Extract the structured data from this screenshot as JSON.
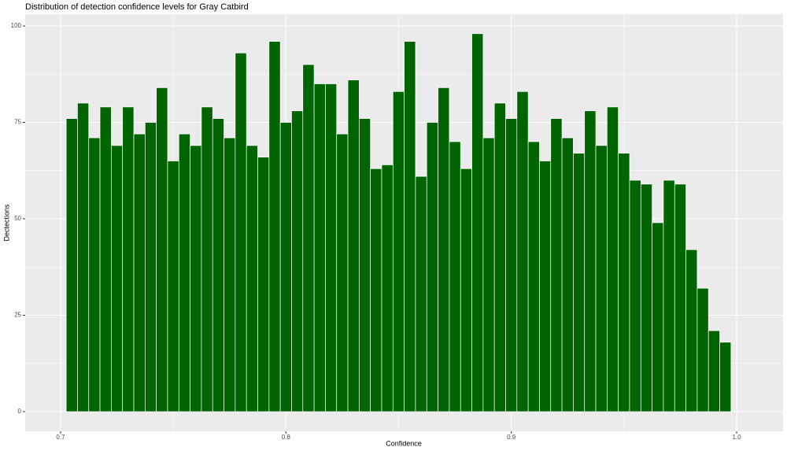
{
  "chart_data": {
    "type": "histogram",
    "title": "Distribution of detection confidence levels for Gray Catbird",
    "x_label": "Confidence",
    "y_label": "Dectections",
    "bins": [
      0.7025,
      0.7075,
      0.7125,
      0.7175,
      0.7225,
      0.7275,
      0.7325,
      0.7375,
      0.7425,
      0.7475,
      0.7525,
      0.7575,
      0.7625,
      0.7675,
      0.7725,
      0.7775,
      0.7825,
      0.7875,
      0.7925,
      0.7975,
      0.8025,
      0.8075,
      0.8125,
      0.8175,
      0.8225,
      0.8275,
      0.8325,
      0.8375,
      0.8425,
      0.8475,
      0.8525,
      0.8575,
      0.8625,
      0.8675,
      0.8725,
      0.8775,
      0.8825,
      0.8875,
      0.8925,
      0.8975,
      0.9025,
      0.9075,
      0.9125,
      0.9175,
      0.9225,
      0.9275,
      0.9325,
      0.9375,
      0.9425,
      0.9475,
      0.9525,
      0.9575,
      0.9625,
      0.9675,
      0.9725,
      0.9775,
      0.9825,
      0.9875,
      0.9925,
      0.9975
    ],
    "values": [
      76,
      80,
      71,
      79,
      69,
      79,
      72,
      75,
      84,
      65,
      72,
      69,
      79,
      76,
      71,
      93,
      69,
      66,
      96,
      75,
      78,
      90,
      85,
      85,
      72,
      86,
      76,
      63,
      64,
      83,
      96,
      61,
      75,
      84,
      70,
      63,
      98,
      71,
      80,
      76,
      83,
      70,
      65,
      76,
      71,
      67,
      78,
      69,
      79,
      67,
      60,
      59,
      49,
      60,
      59,
      42,
      32,
      21,
      18
    ],
    "color": "#006400",
    "xlim": [
      0.6843,
      1.0206
    ],
    "xticks": [
      0.7,
      0.8,
      0.9,
      {
        "value": 1,
        "label": "1.0"
      }
    ],
    "xminor": [
      0.75,
      0.85,
      0.95
    ],
    "ylim": [
      -5.1,
      103.06
    ],
    "yticks": [
      0,
      25,
      50,
      75,
      100
    ],
    "yminor": [
      12.5,
      37.5,
      62.5,
      87.5
    ],
    "grid": true
  }
}
